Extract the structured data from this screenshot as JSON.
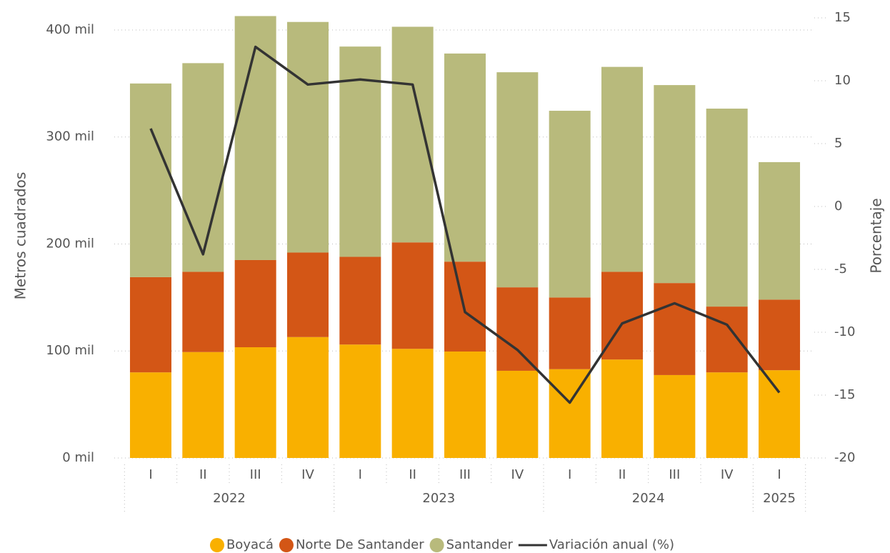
{
  "chart_data": {
    "type": "stacked-bar-line",
    "categories": [
      "I",
      "II",
      "III",
      "IV",
      "I",
      "II",
      "III",
      "IV",
      "I",
      "II",
      "III",
      "IV",
      "I"
    ],
    "groups": [
      {
        "label": "2022",
        "count": 4
      },
      {
        "label": "2023",
        "count": 4
      },
      {
        "label": "2024",
        "count": 4
      },
      {
        "label": "2025",
        "count": 1
      }
    ],
    "series": [
      {
        "name": "Boyacá",
        "color": "#f9b000",
        "values": [
          80000,
          99000,
          103500,
          113000,
          106000,
          102000,
          99500,
          81500,
          83000,
          92000,
          77500,
          80000,
          82000
        ]
      },
      {
        "name": "Norte De Santander",
        "color": "#d35616",
        "values": [
          89000,
          75000,
          81500,
          79000,
          82000,
          99500,
          84000,
          78000,
          67000,
          82000,
          86000,
          61500,
          66000
        ]
      },
      {
        "name": "Santander",
        "color": "#b8ba7c",
        "values": [
          181000,
          195000,
          228000,
          215500,
          196500,
          201500,
          194500,
          201000,
          174500,
          191500,
          185000,
          185000,
          128500
        ]
      },
      {
        "name": "Variación anual (%)",
        "color": "#333333",
        "axis": "y2",
        "values": [
          6.2,
          -3.8,
          12.7,
          9.7,
          10.1,
          9.7,
          -8.4,
          -11.4,
          -15.6,
          -9.3,
          -7.7,
          -9.4,
          -14.8
        ]
      }
    ],
    "ylabel": "Metros cuadrados",
    "y2label": "Porcentaje",
    "ylim": [
      0,
      416000
    ],
    "yticks": [
      {
        "value": 0,
        "label": "0 mil"
      },
      {
        "value": 100000,
        "label": "100 mil"
      },
      {
        "value": 200000,
        "label": "200 mil"
      },
      {
        "value": 300000,
        "label": "300 mil"
      },
      {
        "value": 400000,
        "label": "400 mil"
      }
    ],
    "y2lim": [
      -20,
      15.4
    ],
    "y2ticks": [
      15,
      10,
      5,
      0,
      -5,
      -10,
      -15,
      -20
    ],
    "grid": true,
    "legend": "bottom"
  }
}
